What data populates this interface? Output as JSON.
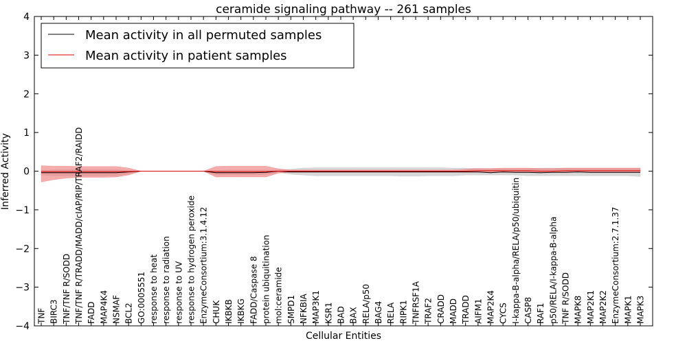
{
  "chart_data": {
    "type": "line",
    "title": "ceramide signaling pathway -- 261 samples",
    "xlabel": "Cellular Entities",
    "ylabel": "Inferred Activity",
    "ylim": [
      -4,
      4
    ],
    "yticks": [
      4,
      3,
      2,
      1,
      0,
      -1,
      -2,
      -3,
      -4
    ],
    "ytick_labels": [
      "4",
      "3",
      "2",
      "1",
      "0",
      "−1",
      "−2",
      "−3",
      "−4"
    ],
    "grid": false,
    "legend_position": "top-left",
    "categories": [
      "TNF",
      "BIRC3",
      "TNF/TNF R/SODD",
      "TNF/TNF R/TRADD/MADD/cIAP/RIP/TRAF2/RAIDD",
      "FADD",
      "MAP4K4",
      "NSMAF",
      "BCL2",
      "GO:0005551",
      "response to heat",
      "response to radiation",
      "response to UV",
      "response to hydrogen peroxide",
      "EnzymeConsortium:3.1.4.12",
      "CHUK",
      "IKBKB",
      "IKBKG",
      "FADD/Caspase 8",
      "protein ubiquitination",
      "mol:ceramide",
      "SMPD1",
      "NFKBIA",
      "MAP3K1",
      "KSR1",
      "BAD",
      "BAX",
      "RELA/p50",
      "BAG4",
      "RELA",
      "RIPK1",
      "TNFRSF1A",
      "TRAF2",
      "CRADD",
      "MADD",
      "TRADD",
      "AIFM1",
      "MAP2K4",
      "CYCS",
      "I-kappa-B-alpha/RELA/p50/ubiquitin",
      "CASP8",
      "RAF1",
      "p50/RELA/I-kappa-B-alpha",
      "TNF R/SODD",
      "MAPK8",
      "MAP2K1",
      "MAP2K2",
      "EnzymeConsortium:2.7.1.37",
      "MAPK1",
      "MAPK3"
    ],
    "series": [
      {
        "name": "Mean activity in all permuted samples",
        "color": "#000000",
        "band_color": "#c8c8c8",
        "values": [
          -0.04,
          -0.04,
          -0.04,
          -0.04,
          -0.04,
          -0.04,
          -0.04,
          -0.02,
          0,
          0,
          0,
          0,
          0,
          0,
          -0.04,
          -0.04,
          -0.04,
          -0.04,
          -0.03,
          0,
          -0.02,
          -0.02,
          -0.02,
          -0.02,
          -0.02,
          -0.02,
          -0.02,
          -0.02,
          -0.02,
          -0.02,
          -0.02,
          -0.02,
          -0.02,
          -0.02,
          -0.02,
          -0.02,
          -0.04,
          -0.02,
          -0.03,
          -0.03,
          -0.04,
          -0.03,
          -0.03,
          -0.02,
          -0.03,
          -0.03,
          -0.03,
          -0.03,
          -0.03
        ],
        "lower": [
          -0.1,
          -0.12,
          -0.12,
          -0.12,
          -0.12,
          -0.12,
          -0.12,
          -0.07,
          0,
          0,
          0,
          0,
          0,
          0,
          -0.1,
          -0.1,
          -0.1,
          -0.1,
          -0.09,
          -0.03,
          -0.08,
          -0.1,
          -0.12,
          -0.12,
          -0.12,
          -0.12,
          -0.12,
          -0.12,
          -0.12,
          -0.13,
          -0.13,
          -0.12,
          -0.12,
          -0.12,
          -0.1,
          -0.1,
          -0.1,
          -0.1,
          -0.1,
          -0.12,
          -0.12,
          -0.12,
          -0.12,
          -0.12,
          -0.12,
          -0.12,
          -0.12,
          -0.12,
          -0.14
        ],
        "upper": [
          0.02,
          0.03,
          0.04,
          0.04,
          0.04,
          0.04,
          0.04,
          0.02,
          0,
          0,
          0,
          0,
          0,
          0,
          0.02,
          0.03,
          0.03,
          0.03,
          0.03,
          0.03,
          0.05,
          0.08,
          0.09,
          0.09,
          0.09,
          0.09,
          0.09,
          0.09,
          0.09,
          0.09,
          0.09,
          0.09,
          0.09,
          0.08,
          0.08,
          0.07,
          0.06,
          0.06,
          0.06,
          0.07,
          0.08,
          0.08,
          0.08,
          0.08,
          0.08,
          0.08,
          0.08,
          0.08,
          0.08
        ]
      },
      {
        "name": "Mean activity in patient samples",
        "color": "#e00000",
        "band_color": "#f08080",
        "values": [
          -0.01,
          -0.01,
          -0.01,
          -0.01,
          -0.01,
          -0.01,
          -0.01,
          -0.01,
          0,
          0,
          0,
          0,
          0,
          0,
          -0.01,
          -0.01,
          -0.01,
          -0.01,
          -0.01,
          0,
          0,
          0,
          0,
          0,
          0,
          0,
          0,
          0,
          0,
          0,
          0,
          0,
          0,
          0,
          0,
          0.01,
          0.01,
          0.01,
          0.01,
          0.01,
          0,
          0,
          0.01,
          0.01,
          0.01,
          0.01,
          0.01,
          0.01,
          0.01
        ],
        "lower": [
          -0.28,
          -0.22,
          -0.18,
          -0.16,
          -0.16,
          -0.16,
          -0.15,
          -0.1,
          0,
          0,
          0,
          0,
          0,
          0,
          -0.15,
          -0.15,
          -0.15,
          -0.15,
          -0.15,
          -0.05,
          -0.03,
          -0.03,
          -0.03,
          -0.03,
          -0.03,
          -0.03,
          -0.03,
          -0.03,
          -0.03,
          -0.03,
          -0.03,
          -0.03,
          -0.03,
          -0.03,
          -0.03,
          -0.03,
          -0.03,
          -0.03,
          -0.03,
          -0.03,
          -0.03,
          -0.03,
          -0.02,
          -0.02,
          -0.02,
          -0.02,
          -0.02,
          -0.02,
          -0.02
        ],
        "upper": [
          0.14,
          0.13,
          0.13,
          0.12,
          0.12,
          0.12,
          0.12,
          0.08,
          0,
          0,
          0,
          0,
          0,
          0,
          0.12,
          0.13,
          0.13,
          0.13,
          0.13,
          0.06,
          0.03,
          0.03,
          0.03,
          0.03,
          0.03,
          0.03,
          0.03,
          0.03,
          0.03,
          0.03,
          0.03,
          0.03,
          0.03,
          0.03,
          0.05,
          0.07,
          0.07,
          0.08,
          0.08,
          0.08,
          0.07,
          0.07,
          0.08,
          0.08,
          0.08,
          0.08,
          0.08,
          0.08,
          0.08
        ]
      }
    ]
  }
}
